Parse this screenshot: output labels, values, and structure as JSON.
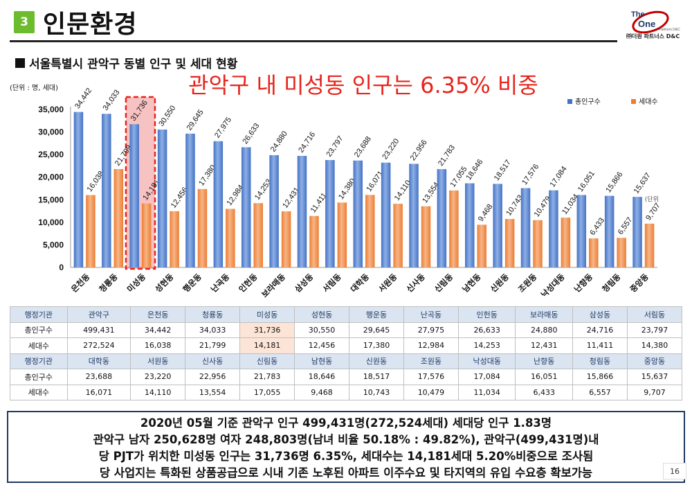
{
  "header": {
    "section_number": "3",
    "section_title": "인문환경",
    "logo_line1": "The",
    "logo_line2": "One",
    "logo_line3": "Partners D&C",
    "logo_company": "㈜더원 파트너스 D&C"
  },
  "chart_heading": "서울특별시 관악구 동별 인구 및 세대 현황",
  "callout": "관악구 내 미성동 인구는 6.35% 비중",
  "colors": {
    "population": "#4472c4",
    "households": "#ed7d31",
    "highlight": "#e8241c",
    "badge": "#6dbb2e"
  },
  "chart_data": {
    "type": "bar",
    "unit_label": "(단위 : 명, 세대)",
    "categories": [
      "은천동",
      "청룡동",
      "미성동",
      "성현동",
      "행운동",
      "난곡동",
      "인헌동",
      "보라매동",
      "삼성동",
      "서림동",
      "대학동",
      "서원동",
      "신사동",
      "신림동",
      "남현동",
      "신원동",
      "조원동",
      "낙성대동",
      "난향동",
      "청림동",
      "중앙동"
    ],
    "series": [
      {
        "name": "총인구수",
        "values": [
          34442,
          34033,
          31736,
          30550,
          29645,
          27975,
          26633,
          24880,
          24716,
          23797,
          23688,
          23220,
          22956,
          21783,
          18646,
          18517,
          17576,
          17084,
          16051,
          15866,
          15637
        ]
      },
      {
        "name": "세대수",
        "values": [
          16038,
          21799,
          14181,
          12456,
          17380,
          12984,
          14253,
          12431,
          11411,
          14380,
          16071,
          14110,
          13554,
          17055,
          9468,
          10743,
          10479,
          11034,
          6433,
          6557,
          9707
        ]
      }
    ],
    "ylim": [
      0,
      35000
    ],
    "yticks": [
      0,
      5000,
      10000,
      15000,
      20000,
      25000,
      30000,
      35000
    ],
    "ytick_labels": [
      "0",
      "5,000",
      "10,000",
      "15,000",
      "20,000",
      "25,000",
      "30,000",
      "35,000"
    ],
    "value_labels_pop": [
      "34,442",
      "34,033",
      "31,736",
      "30,550",
      "29,645",
      "27,975",
      "26,633",
      "24,880",
      "24,716",
      "23,797",
      "23,688",
      "23,220",
      "22,956",
      "21,783",
      "18,646",
      "18,517",
      "17,576",
      "17,084",
      "16,051",
      "15,866",
      "15,637"
    ],
    "value_labels_hh": [
      "16,038",
      "21,799",
      "14,181",
      "12,456",
      "17,380",
      "12,984",
      "14,253",
      "12,431",
      "11,411",
      "14,380",
      "16,071",
      "14,110",
      "13,554",
      "17,055",
      "9,468",
      "10,743",
      "10,479",
      "11,034",
      "6,433",
      "6,557",
      "9,707"
    ],
    "highlight_category": "미성동",
    "legend_position": "top-right",
    "overlap_note": "(단위"
  },
  "table": {
    "rows1": [
      [
        "행정기관",
        "관악구",
        "은천동",
        "청룡동",
        "미성동",
        "성현동",
        "행운동",
        "난곡동",
        "인헌동",
        "보라매동",
        "삼성동",
        "서림동"
      ],
      [
        "총인구수",
        "499,431",
        "34,442",
        "34,033",
        "31,736",
        "30,550",
        "29,645",
        "27,975",
        "26,633",
        "24,880",
        "24,716",
        "23,797"
      ],
      [
        "세대수",
        "272,524",
        "16,038",
        "21,799",
        "14,181",
        "12,456",
        "17,380",
        "12,984",
        "14,253",
        "12,431",
        "11,411",
        "14,380"
      ]
    ],
    "rows2": [
      [
        "행정기관",
        "대학동",
        "서원동",
        "신사동",
        "신림동",
        "남현동",
        "신원동",
        "조원동",
        "낙성대동",
        "난향동",
        "청림동",
        "중앙동"
      ],
      [
        "총인구수",
        "23,688",
        "23,220",
        "22,956",
        "21,783",
        "18,646",
        "18,517",
        "17,576",
        "17,084",
        "16,051",
        "15,866",
        "15,637"
      ],
      [
        "세대수",
        "16,071",
        "14,110",
        "13,554",
        "17,055",
        "9,468",
        "10,743",
        "10,479",
        "11,034",
        "6,433",
        "6,557",
        "9,707"
      ]
    ]
  },
  "summary": {
    "line1": "2020년 05월 기준 관악구 인구 499,431명(272,524세대) 세대당 인구 1.83명",
    "line2": "관악구 남자 250,628명 여자 248,803명(남녀 비율 50.18% : 49.82%), 관악구(499,431명)내",
    "line3": "당 PJT가 위치한 미성동 인구는 31,736명 6.35%, 세대수는 14,181세대 5.20%비중으로 조사됨",
    "line4": "당 사업지는 특화된 상품공급으로 시내 기존 노후된 아파트 이주수요 및 타지역의 유입 수요층 확보가능"
  },
  "page_number": "16"
}
